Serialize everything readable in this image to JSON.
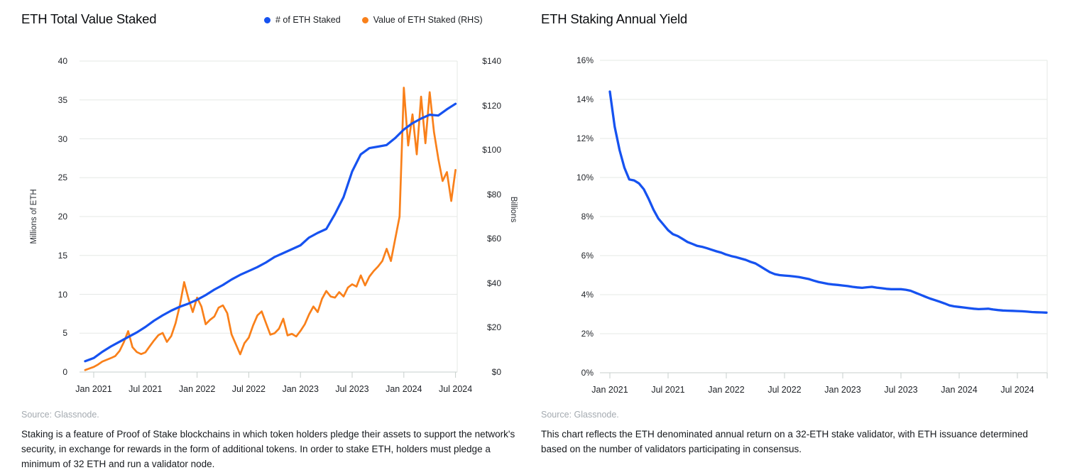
{
  "colors": {
    "line_blue": "#1652f0",
    "line_orange": "#f9801a",
    "gridline": "#e5e8e6",
    "axis": "#c7cfcc"
  },
  "left_panel": {
    "title": "ETH Total Value Staked",
    "source": "Source: Glassnode.",
    "caption": "Staking is a feature of Proof of Stake  blockchains in which token holders pledge their assets to support the network's security, in exchange for rewards in the form of additional tokens. In order to stake ETH, holders must pledge a minimum of 32 ETH and run a validator node."
  },
  "right_panel": {
    "title": "ETH Staking Annual Yield",
    "source": "Source: Glassnode.",
    "caption": "This chart reflects the ETH denominated annual return on a 32-ETH stake validator, with ETH issuance determined based on the number of validators participating in consensus."
  },
  "chart_data": [
    {
      "type": "line",
      "title": "ETH Total Value Staked",
      "x_ticks": [
        "Jan 2021",
        "Jul 2021",
        "Jan 2022",
        "Jul 2022",
        "Jan 2023",
        "Jul 2023",
        "Jan 2024",
        "Jul 2024"
      ],
      "y_left": {
        "label": "Millions of ETH",
        "range": [
          0,
          40
        ],
        "ticks": [
          "40",
          "35",
          "30",
          "25",
          "20",
          "15",
          "10",
          "5",
          "0"
        ]
      },
      "y_right": {
        "label": "Billions",
        "range": [
          0,
          140
        ],
        "ticks": [
          "$140",
          "$120",
          "$100",
          "$80",
          "$60",
          "$40",
          "$20",
          "$0"
        ]
      },
      "grid": true,
      "legend_position": "top",
      "series": [
        {
          "name": "# of ETH Staked",
          "axis": "left",
          "color": "#1652f0",
          "interval": "monthly",
          "x_start": "Dec 2020",
          "x_end": "Jul 2024",
          "values": [
            1.4,
            1.8,
            2.6,
            3.3,
            3.9,
            4.5,
            5.1,
            5.8,
            6.6,
            7.3,
            7.9,
            8.4,
            8.8,
            9.3,
            9.9,
            10.6,
            11.2,
            11.9,
            12.5,
            13.0,
            13.5,
            14.1,
            14.8,
            15.3,
            15.8,
            16.3,
            17.3,
            17.9,
            18.4,
            20.3,
            22.5,
            25.8,
            28.0,
            28.8,
            29.0,
            29.2,
            30.1,
            31.2,
            32.0,
            32.6,
            33.1,
            33.0,
            33.8,
            34.5
          ]
        },
        {
          "name": "Value of ETH Staked (RHS)",
          "axis": "right",
          "color": "#f9801a",
          "interval": "biweekly",
          "x_start": "Dec 2020",
          "x_end": "Jul 2024",
          "values": [
            0.9,
            1.6,
            2.3,
            3.4,
            4.7,
            5.5,
            6.3,
            7.2,
            9.5,
            13.5,
            18.4,
            11.2,
            9.0,
            8.1,
            8.9,
            11.6,
            14.2,
            16.6,
            17.6,
            13.6,
            16.2,
            22.0,
            30.0,
            40.5,
            33.0,
            27.0,
            33.5,
            29.5,
            21.5,
            23.5,
            25.0,
            29.0,
            30.0,
            26.5,
            17.0,
            12.5,
            8.0,
            13.0,
            15.5,
            21.0,
            25.5,
            27.3,
            22.0,
            16.8,
            17.5,
            19.5,
            24.0,
            16.5,
            17.2,
            16.0,
            18.5,
            21.5,
            26.0,
            29.5,
            27.0,
            33.0,
            36.5,
            34.0,
            33.5,
            36.0,
            34.0,
            38.0,
            39.5,
            38.5,
            43.5,
            39.0,
            43.0,
            45.5,
            47.5,
            50.0,
            55.5,
            50.0,
            60.0,
            70.0,
            128.0,
            102.0,
            116.0,
            98.0,
            124.0,
            103.0,
            126.0,
            108.0,
            96.0,
            86.0,
            90.0,
            77.0,
            91.0
          ]
        }
      ]
    },
    {
      "type": "line",
      "title": "ETH Staking Annual Yield",
      "x_ticks": [
        "Jan 2021",
        "Jul 2021",
        "Jan 2022",
        "Jul 2022",
        "Jan 2023",
        "Jul 2023",
        "Jan 2024",
        "Jul 2024"
      ],
      "y": {
        "label": "",
        "unit": "%",
        "range": [
          0,
          16
        ],
        "ticks": [
          "16%",
          "14%",
          "12%",
          "10%",
          "8%",
          "6%",
          "4%",
          "2%",
          "0%"
        ]
      },
      "grid": true,
      "series": [
        {
          "name": "ETH staking annual yield",
          "color": "#1652f0",
          "interval": "biweekly",
          "x_start": "Jan 2021",
          "x_end": "Oct 2024",
          "values": [
            14.4,
            12.6,
            11.4,
            10.5,
            9.9,
            9.85,
            9.7,
            9.4,
            8.9,
            8.35,
            7.9,
            7.6,
            7.3,
            7.1,
            7.0,
            6.85,
            6.7,
            6.6,
            6.5,
            6.45,
            6.38,
            6.3,
            6.22,
            6.15,
            6.05,
            5.98,
            5.92,
            5.85,
            5.78,
            5.68,
            5.6,
            5.45,
            5.3,
            5.15,
            5.05,
            5.0,
            4.98,
            4.96,
            4.93,
            4.9,
            4.85,
            4.8,
            4.72,
            4.65,
            4.6,
            4.55,
            4.52,
            4.5,
            4.47,
            4.44,
            4.4,
            4.37,
            4.35,
            4.38,
            4.4,
            4.36,
            4.33,
            4.3,
            4.28,
            4.28,
            4.28,
            4.25,
            4.2,
            4.1,
            4.0,
            3.9,
            3.8,
            3.72,
            3.64,
            3.55,
            3.45,
            3.4,
            3.37,
            3.34,
            3.31,
            3.28,
            3.26,
            3.27,
            3.28,
            3.24,
            3.21,
            3.19,
            3.18,
            3.17,
            3.16,
            3.15,
            3.13,
            3.11,
            3.1,
            3.09,
            3.08
          ]
        }
      ]
    }
  ]
}
